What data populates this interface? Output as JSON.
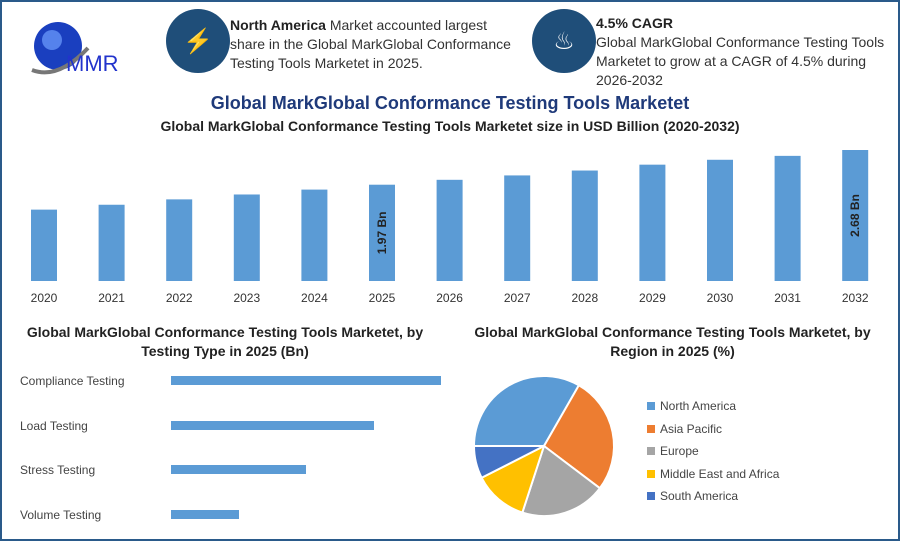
{
  "header": {
    "logo_text": "MMR",
    "info1": {
      "bold": "North America",
      "text": " Market accounted largest share in the Global MarkGlobal Conformance Testing Tools Marketet in 2025."
    },
    "info2": {
      "bold": "4.5% CAGR",
      "text": "Global MarkGlobal Conformance Testing Tools Marketet to grow at a CAGR of 4.5% during 2026-2032"
    },
    "title": "Global MarkGlobal Conformance Testing Tools Marketet"
  },
  "chart_data": [
    {
      "type": "bar",
      "title": "Global MarkGlobal Conformance Testing Tools Marketet size in USD Billion (2020-2032)",
      "categories": [
        "2020",
        "2021",
        "2022",
        "2023",
        "2024",
        "2025",
        "2026",
        "2027",
        "2028",
        "2029",
        "2030",
        "2031",
        "2032"
      ],
      "values": [
        1.46,
        1.56,
        1.67,
        1.77,
        1.87,
        1.97,
        2.07,
        2.16,
        2.26,
        2.38,
        2.48,
        2.56,
        2.68
      ],
      "data_labels": {
        "2025": "1.97 Bn",
        "2032": "2.68 Bn"
      },
      "color": "#5b9bd5",
      "ylim": [
        0,
        2.8
      ]
    },
    {
      "type": "bar",
      "orientation": "horizontal",
      "title": "Global MarkGlobal Conformance Testing Tools Marketet, by Testing Type in 2025 (Bn)",
      "categories": [
        "Compliance Testing",
        "Load Testing",
        "Stress Testing",
        "Volume Testing"
      ],
      "values": [
        0.8,
        0.6,
        0.4,
        0.2
      ],
      "color": "#5b9bd5",
      "xlim": [
        0,
        0.8
      ]
    },
    {
      "type": "pie",
      "title": "Global MarkGlobal Conformance Testing Tools Marketet, by Region in 2025 (%)",
      "labels": [
        "North America",
        "Asia Pacific",
        "Europe",
        "Middle East and Africa",
        "South America"
      ],
      "values": [
        33.3,
        27,
        19.7,
        12.5,
        7.5
      ],
      "colors": [
        "#5b9bd5",
        "#ed7d31",
        "#a5a5a5",
        "#ffc000",
        "#4472c4"
      ]
    }
  ]
}
